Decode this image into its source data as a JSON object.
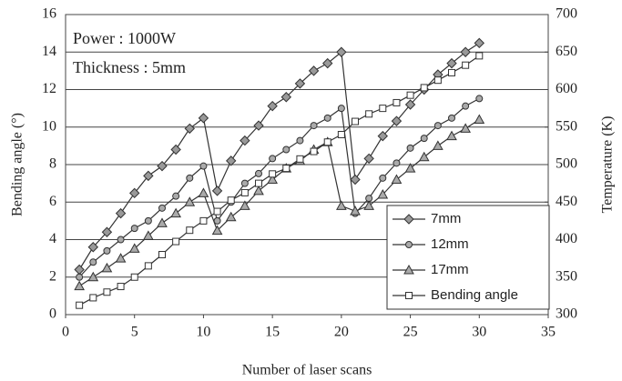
{
  "chart_data": {
    "type": "line",
    "annotations": [
      "Power : 1000W",
      "Thickness : 5mm"
    ],
    "x_label": "Number of laser scans",
    "y_label": "Bending angle (°)",
    "y2_label": "Temperature (K)",
    "x": [
      1,
      2,
      3,
      4,
      5,
      6,
      7,
      8,
      9,
      10,
      11,
      12,
      13,
      14,
      15,
      16,
      17,
      18,
      19,
      20,
      21,
      22,
      23,
      24,
      25,
      26,
      27,
      28,
      29,
      30
    ],
    "series": [
      {
        "name": "7mm",
        "color": "#999999",
        "marker": "diamond",
        "axis": "y2",
        "values": [
          360,
          390,
          410,
          435,
          462,
          485,
          498,
          520,
          548,
          562,
          465,
          505,
          532,
          552,
          578,
          590,
          608,
          625,
          635,
          650,
          480,
          508,
          538,
          558,
          580,
          600,
          620,
          635,
          650,
          662
        ]
      },
      {
        "name": "12mm",
        "color": "#aaaaaa",
        "marker": "circle",
        "axis": "y2",
        "values": [
          350,
          370,
          385,
          400,
          415,
          425,
          442,
          458,
          482,
          498,
          425,
          450,
          475,
          488,
          508,
          520,
          532,
          552,
          562,
          575,
          435,
          455,
          482,
          502,
          522,
          535,
          552,
          562,
          578,
          588
        ]
      },
      {
        "name": "17mm",
        "color": "#aaaaaa",
        "marker": "triangle",
        "axis": "y2",
        "values": [
          338,
          350,
          362,
          375,
          388,
          405,
          422,
          435,
          450,
          462,
          412,
          430,
          445,
          465,
          480,
          495,
          505,
          520,
          530,
          445,
          438,
          445,
          460,
          480,
          495,
          510,
          525,
          538,
          548,
          560
        ]
      },
      {
        "name": "Bending angle",
        "color": "#ffffff",
        "marker": "square",
        "axis": "y",
        "values": [
          0.5,
          0.9,
          1.2,
          1.5,
          2.0,
          2.6,
          3.2,
          3.9,
          4.5,
          5.0,
          5.5,
          6.1,
          6.5,
          7.0,
          7.5,
          7.8,
          8.3,
          8.7,
          9.2,
          9.6,
          10.3,
          10.7,
          11.0,
          11.3,
          11.7,
          12.1,
          12.5,
          12.9,
          13.3,
          13.8
        ]
      }
    ],
    "xlim": [
      0,
      35
    ],
    "xticks": [
      0,
      5,
      10,
      15,
      20,
      25,
      30,
      35
    ],
    "ylim": [
      0,
      16
    ],
    "yticks": [
      0,
      2,
      4,
      6,
      8,
      10,
      12,
      14,
      16
    ],
    "y2lim": [
      300,
      700
    ],
    "y2ticks": [
      300,
      350,
      400,
      450,
      500,
      550,
      600,
      650,
      700
    ],
    "grid": true,
    "legend": "lower right"
  }
}
